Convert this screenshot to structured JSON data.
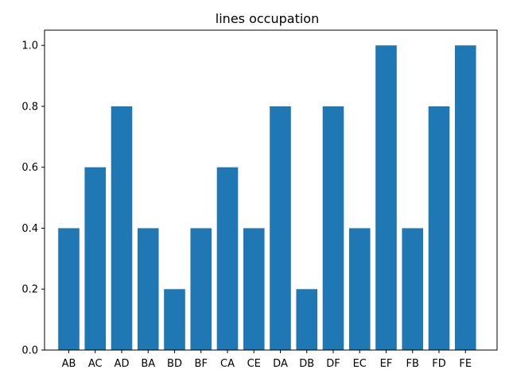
{
  "chart_data": {
    "type": "bar",
    "title": "lines occupation",
    "xlabel": "",
    "ylabel": "",
    "categories": [
      "AB",
      "AC",
      "AD",
      "BA",
      "BD",
      "BF",
      "CA",
      "CE",
      "DA",
      "DB",
      "DF",
      "EC",
      "EF",
      "FB",
      "FD",
      "FE"
    ],
    "values": [
      0.4,
      0.6,
      0.8,
      0.4,
      0.2,
      0.4,
      0.6,
      0.4,
      0.8,
      0.2,
      0.8,
      0.4,
      1.0,
      0.4,
      0.8,
      1.0
    ],
    "ylim": [
      0,
      1.05
    ],
    "yticks": [
      "0.0",
      "0.2",
      "0.4",
      "0.6",
      "0.8",
      "1.0"
    ],
    "grid": false,
    "bar_color": "#1f77b4"
  }
}
